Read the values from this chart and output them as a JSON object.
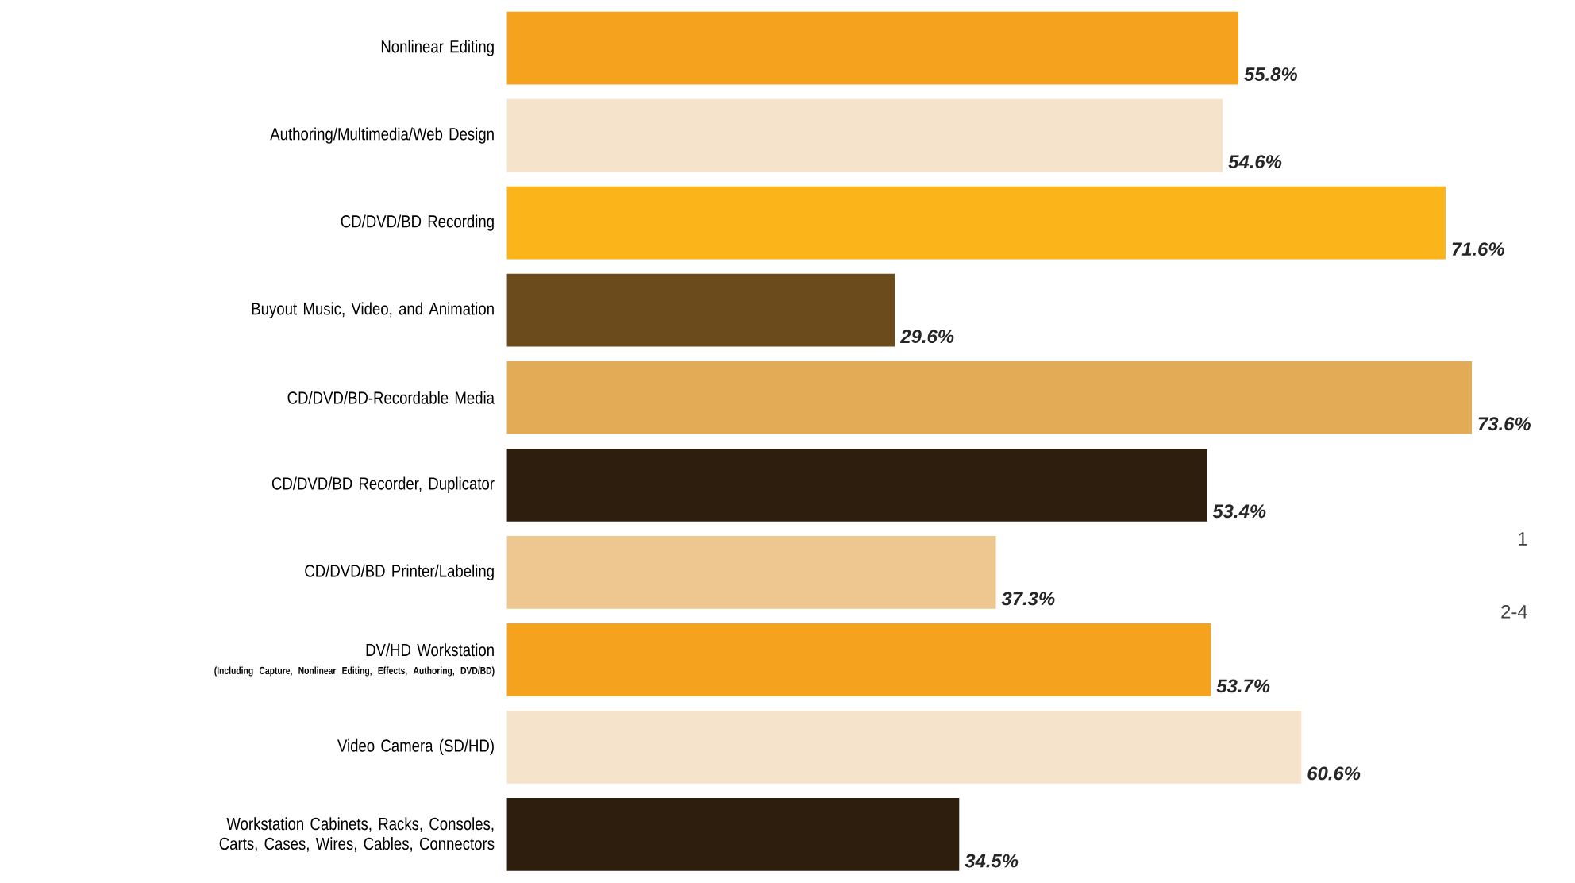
{
  "chart_data": {
    "type": "bar",
    "orientation": "horizontal",
    "categories": [
      "Nonlinear Editing",
      "Authoring/Multimedia/Web Design",
      "CD/DVD/BD Recording",
      "Buyout Music, Video, and Animation",
      "CD/DVD/BD-Recordable Media",
      "CD/DVD/BD Recorder, Duplicator",
      "CD/DVD/BD Printer/Labeling",
      "DV/HD Workstation",
      "Video Camera (SD/HD)",
      "Workstation Cabinets, Racks, Consoles, Carts, Cases, Wires, Cables, Connectors"
    ],
    "values": [
      55.8,
      54.6,
      71.6,
      29.6,
      73.6,
      53.4,
      37.3,
      53.7,
      60.6,
      34.5
    ],
    "value_labels": [
      "55.8%",
      "54.6%",
      "71.6%",
      "29.6%",
      "73.6%",
      "53.4%",
      "37.3%",
      "53.7%",
      "60.6%",
      "34.5%"
    ],
    "colors": [
      "#f5a31f",
      "#f5e4cb",
      "#fbb51a",
      "#6b4a1c",
      "#e3ab55",
      "#2e1e0e",
      "#eec68f",
      "#f5a31f",
      "#f5e4cb",
      "#2e1e0e"
    ],
    "annotations": [
      "(Including Capture, Nonlinear Editing, Effects, Authoring, DVD/BD)",
      "1",
      "2-4"
    ]
  }
}
